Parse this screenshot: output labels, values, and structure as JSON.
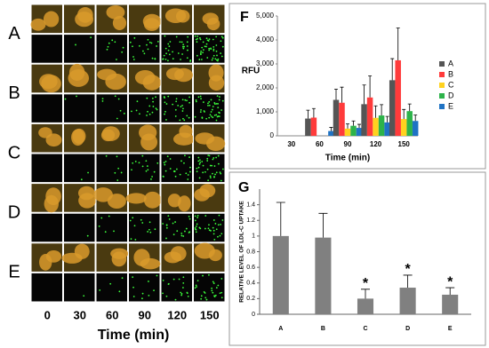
{
  "image_panel": {
    "rows": [
      "A",
      "B",
      "C",
      "D",
      "E"
    ],
    "columns": [
      "0",
      "30",
      "60",
      "90",
      "120",
      "150"
    ],
    "xlabel": "Time (min)"
  },
  "chart_data": [
    {
      "type": "grouped-bar",
      "panel": "F",
      "xlabel": "Time (min)",
      "ylabel": "RFU",
      "categories": [
        "30",
        "60",
        "90",
        "120",
        "150"
      ],
      "series": [
        {
          "name": "A",
          "color": "#555555",
          "values": [
            0,
            720,
            1500,
            1320,
            2320
          ],
          "errors": [
            0,
            350,
            450,
            800,
            900
          ]
        },
        {
          "name": "B",
          "color": "#ff3b3b",
          "values": [
            0,
            760,
            1380,
            1600,
            3150
          ],
          "errors": [
            0,
            380,
            650,
            900,
            1350
          ]
        },
        {
          "name": "C",
          "color": "#ffd21f",
          "values": [
            0,
            0,
            300,
            750,
            700
          ],
          "errors": [
            0,
            0,
            200,
            500,
            400
          ]
        },
        {
          "name": "D",
          "color": "#2db34a",
          "values": [
            0,
            0,
            420,
            850,
            1030
          ],
          "errors": [
            0,
            0,
            200,
            450,
            300
          ]
        },
        {
          "name": "E",
          "color": "#1f73c4",
          "values": [
            0,
            200,
            330,
            560,
            620
          ],
          "errors": [
            0,
            150,
            150,
            250,
            250
          ]
        }
      ],
      "ylim": [
        0,
        5000
      ],
      "yticks": [
        0,
        {
          "value": 1000,
          "label": "1,000"
        },
        {
          "value": 2000,
          "label": "2,000"
        },
        {
          "value": 3000,
          "label": "3,000"
        },
        {
          "value": 4000,
          "label": "4,000"
        },
        {
          "value": 5000,
          "label": "5,000"
        }
      ],
      "legend": "right"
    },
    {
      "type": "bar",
      "panel": "G",
      "ylabel": "RELATIVE LEVEL OF LDL-C UPTAKE",
      "categories": [
        "A",
        "B",
        "C",
        "D",
        "E"
      ],
      "color": "#808080",
      "values": [
        1,
        0.98,
        0.2,
        0.34,
        0.25
      ],
      "errors": [
        0.43,
        0.31,
        0.12,
        0.16,
        0.09
      ],
      "significance": [
        null,
        null,
        "*",
        "*",
        "*"
      ],
      "ylim": [
        0,
        1.6
      ],
      "yticks": [
        0,
        0.2,
        0.4,
        0.6,
        0.8,
        1,
        1.2,
        1.4
      ]
    }
  ]
}
